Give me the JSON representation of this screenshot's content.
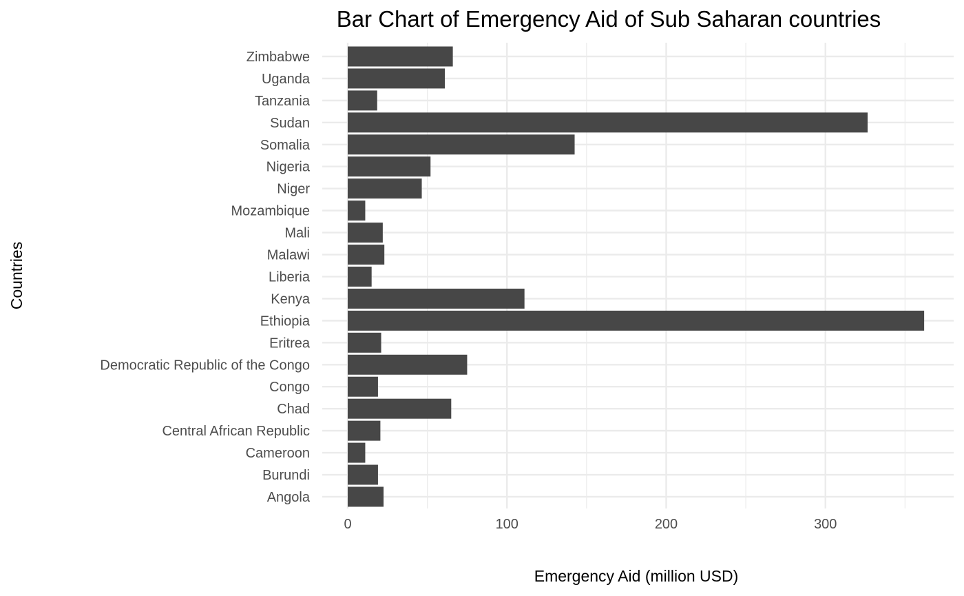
{
  "chart_data": {
    "type": "bar",
    "orientation": "horizontal",
    "title": "Bar Chart of Emergency Aid of Sub Saharan countries",
    "xlabel": "Emergency Aid (million USD)",
    "ylabel": "Countries",
    "categories": [
      "Angola",
      "Burundi",
      "Cameroon",
      "Central African Republic",
      "Chad",
      "Congo",
      "Democratic Republic of the Congo",
      "Eritrea",
      "Ethiopia",
      "Kenya",
      "Liberia",
      "Malawi",
      "Mali",
      "Mozambique",
      "Niger",
      "Nigeria",
      "Somalia",
      "Sudan",
      "Tanzania",
      "Uganda",
      "Zimbabwe"
    ],
    "values": [
      22.5,
      19,
      11,
      20.5,
      65,
      19,
      75,
      21,
      362,
      111,
      15,
      23,
      22,
      11,
      46.5,
      52,
      142.5,
      326.5,
      18.5,
      61,
      66
    ],
    "xlim": [
      0,
      380
    ],
    "xticks": [
      0,
      100,
      200,
      300
    ],
    "xtick_labels": [
      "0",
      "100",
      "200",
      "300"
    ],
    "grid": true,
    "legend": "none",
    "bar_color": "#474747",
    "grid_color": "#ebebeb"
  }
}
